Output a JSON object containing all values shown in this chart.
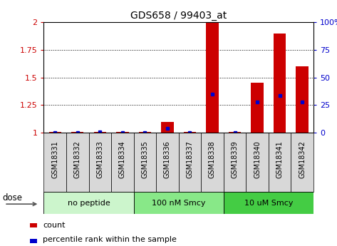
{
  "title": "GDS658 / 99403_at",
  "samples": [
    "GSM18331",
    "GSM18332",
    "GSM18333",
    "GSM18334",
    "GSM18335",
    "GSM18336",
    "GSM18337",
    "GSM18338",
    "GSM18339",
    "GSM18340",
    "GSM18341",
    "GSM18342"
  ],
  "red_bar_heights": [
    1.01,
    1.01,
    1.01,
    1.01,
    1.01,
    1.1,
    1.01,
    2.0,
    1.01,
    1.45,
    1.9,
    1.6
  ],
  "blue_marker_values": [
    1.005,
    1.005,
    1.008,
    1.005,
    1.005,
    1.04,
    1.005,
    1.35,
    1.005,
    1.28,
    1.34,
    1.28
  ],
  "groups": [
    {
      "label": "no peptide",
      "start": 0,
      "end": 4,
      "color": "#ccf5cc"
    },
    {
      "label": "100 nM Smcy",
      "start": 4,
      "end": 8,
      "color": "#88e888"
    },
    {
      "label": "10 uM Smcy",
      "start": 8,
      "end": 12,
      "color": "#44cc44"
    }
  ],
  "ylim": [
    1.0,
    2.0
  ],
  "yticks_left": [
    1.0,
    1.25,
    1.5,
    1.75,
    2.0
  ],
  "ytick_labels_left": [
    "1",
    "1.25",
    "1.5",
    "1.75",
    "2"
  ],
  "yticks_right": [
    0,
    25,
    50,
    75,
    100
  ],
  "ytick_labels_right": [
    "0",
    "25",
    "50",
    "75",
    "100%"
  ],
  "ylabel_left_color": "#cc0000",
  "ylabel_right_color": "#0000cc",
  "bar_color": "#cc0000",
  "marker_color": "#0000cc",
  "bg_color": "#ffffff",
  "plot_bg": "#ffffff",
  "dose_label": "dose",
  "legend_count": "count",
  "legend_percentile": "percentile rank within the sample",
  "sample_label_bg": "#d8d8d8"
}
